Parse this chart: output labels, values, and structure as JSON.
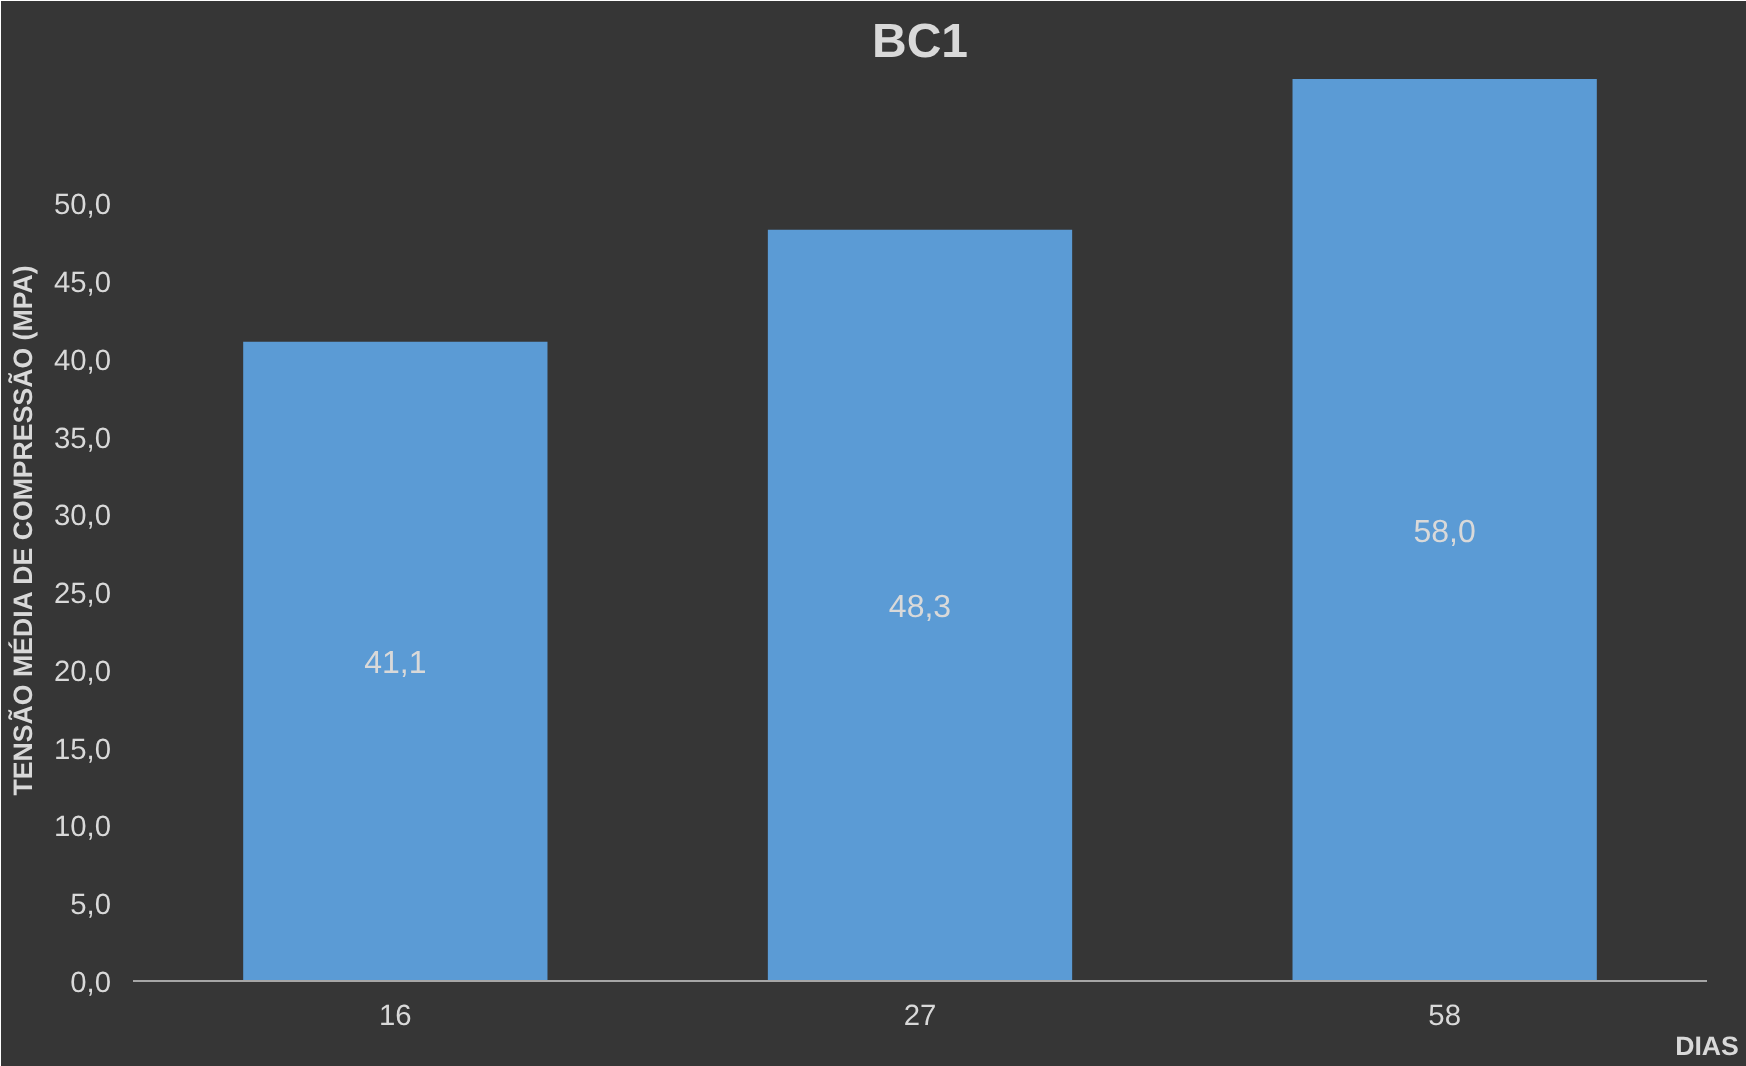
{
  "chart_data": {
    "type": "bar",
    "title": "BC1",
    "xlabel": "DIAS",
    "ylabel": "TENSÃO MÉDIA DE COMPRESSÃO (MPA)",
    "categories": [
      "16",
      "27",
      "58"
    ],
    "values": [
      41.1,
      48.3,
      58.0
    ],
    "value_labels": [
      "41,1",
      "48,3",
      "58,0"
    ],
    "color": "#5b9bd5",
    "ylim": [
      0,
      58
    ],
    "yticks": [
      {
        "value": 0,
        "label": "0,0"
      },
      {
        "value": 5,
        "label": "5,0"
      },
      {
        "value": 10,
        "label": "10,0"
      },
      {
        "value": 15,
        "label": "15,0"
      },
      {
        "value": 20,
        "label": "20,0"
      },
      {
        "value": 25,
        "label": "25,0"
      },
      {
        "value": 30,
        "label": "30,0"
      },
      {
        "value": 35,
        "label": "35,0"
      },
      {
        "value": 40,
        "label": "40,0"
      },
      {
        "value": 45,
        "label": "45,0"
      },
      {
        "value": 50,
        "label": "50,0"
      }
    ],
    "grid": false
  }
}
